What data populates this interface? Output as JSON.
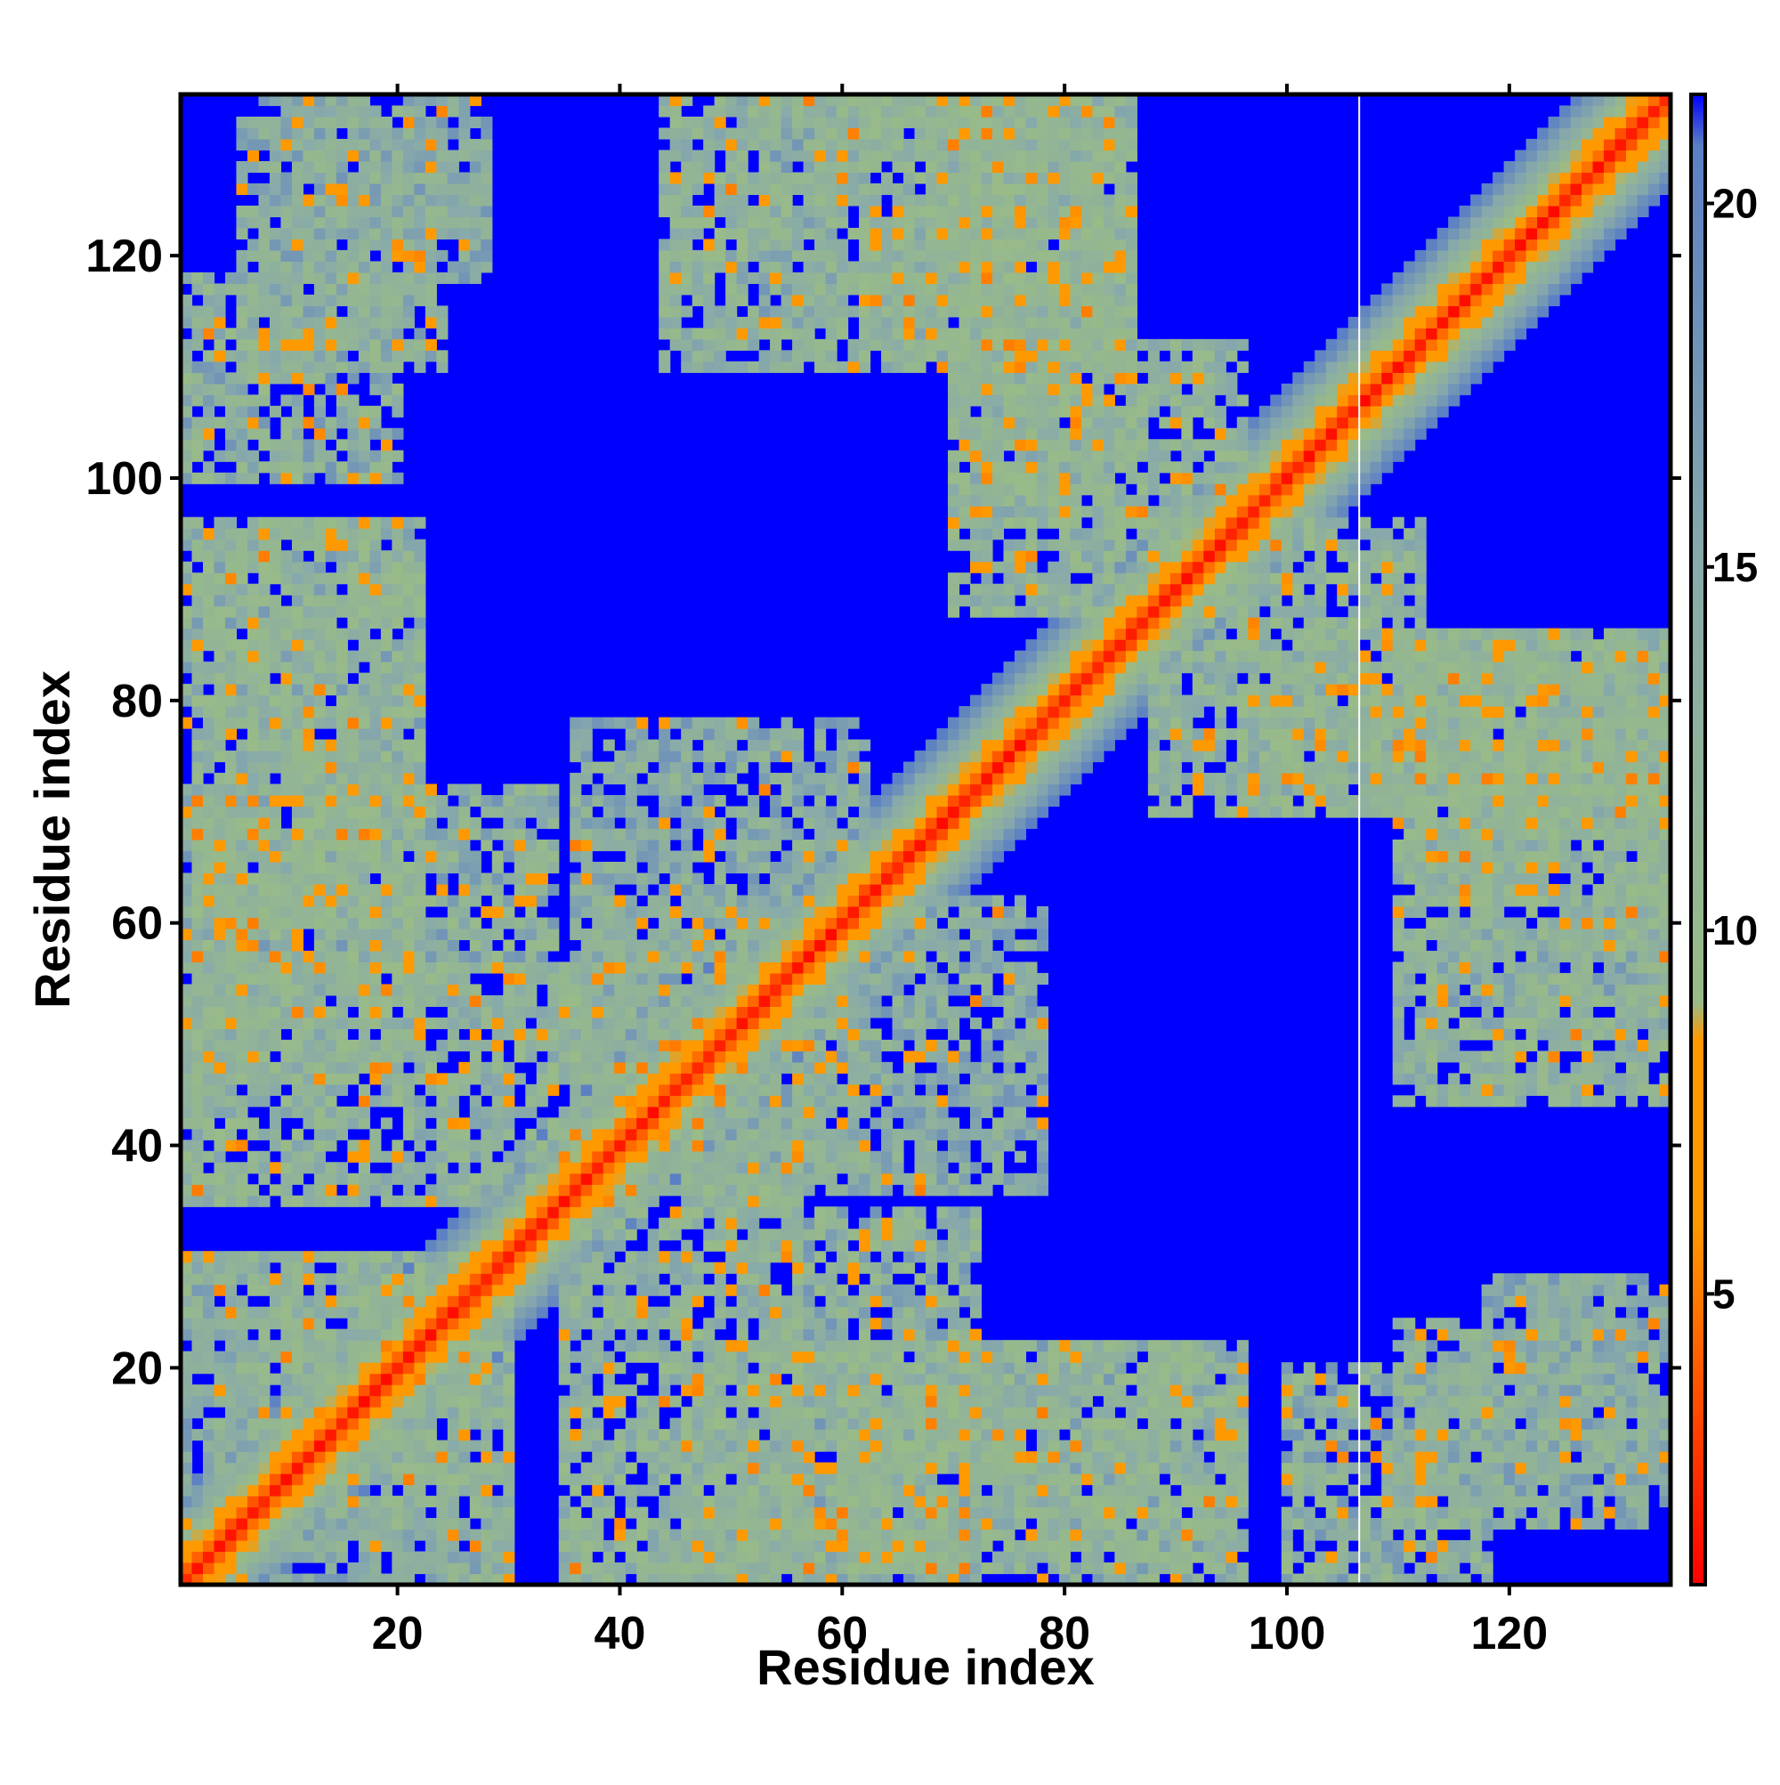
{
  "chart_data": {
    "type": "heatmap",
    "title": "",
    "xlabel": "Residue index",
    "ylabel": "Residue index",
    "n_residues": 134,
    "xlim": [
      1,
      134
    ],
    "ylim": [
      1,
      134
    ],
    "x_ticks": [
      20,
      40,
      60,
      80,
      100,
      120
    ],
    "y_ticks": [
      20,
      40,
      60,
      80,
      100,
      120
    ],
    "colorbar": {
      "ticks": [
        5,
        10,
        15,
        20
      ],
      "range": [
        1,
        21.5
      ],
      "stops": [
        {
          "value": 1,
          "color": "#ff0000"
        },
        {
          "value": 6,
          "color": "#ff9900"
        },
        {
          "value": 8.5,
          "color": "#ff9900"
        },
        {
          "value": 9,
          "color": "#99bb88"
        },
        {
          "value": 15,
          "color": "#88aaaa"
        },
        {
          "value": 20.8,
          "color": "#5b7fc4"
        },
        {
          "value": 21.5,
          "color": "#0000ff"
        }
      ]
    },
    "background_value": 21.5,
    "background_color": "#0000ff",
    "gap_column": 107,
    "contact_regions": [
      {
        "i": [
          24,
          30
        ],
        "j": [
          1,
          30
        ],
        "min": 9,
        "max": 16
      },
      {
        "i": [
          1,
          30
        ],
        "j": [
          1,
          6
        ],
        "min": 12,
        "max": 18
      },
      {
        "i": [
          8,
          22
        ],
        "j": [
          4,
          28
        ],
        "min": 9,
        "max": 16
      },
      {
        "i": [
          35,
          56
        ],
        "j": [
          1,
          42
        ],
        "min": 9,
        "max": 16
      },
      {
        "i": [
          56,
          72
        ],
        "j": [
          1,
          34
        ],
        "min": 9,
        "max": 18
      },
      {
        "i": [
          60,
          76
        ],
        "j": [
          2,
          22
        ],
        "min": 9,
        "max": 16
      },
      {
        "i": [
          78,
          96
        ],
        "j": [
          1,
          22
        ],
        "min": 9,
        "max": 18
      },
      {
        "i": [
          100,
          118
        ],
        "j": [
          1,
          20
        ],
        "min": 9,
        "max": 18
      },
      {
        "i": [
          118,
          134
        ],
        "j": [
          8,
          28
        ],
        "min": 10,
        "max": 18
      },
      {
        "i": [
          110,
          134
        ],
        "j": [
          44,
          86
        ],
        "min": 9,
        "max": 16
      },
      {
        "i": [
          88,
          112
        ],
        "j": [
          70,
          96
        ],
        "min": 9,
        "max": 16
      },
      {
        "i": [
          70,
          86
        ],
        "j": [
          96,
          134
        ],
        "min": 9,
        "max": 16
      },
      {
        "i": [
          62,
          84
        ],
        "j": [
          112,
          134
        ],
        "min": 9,
        "max": 16
      },
      {
        "i": [
          50,
          60
        ],
        "j": [
          114,
          134
        ],
        "min": 10,
        "max": 18
      },
      {
        "i": [
          2,
          22
        ],
        "j": [
          46,
          96
        ],
        "min": 9,
        "max": 16
      },
      {
        "i": [
          6,
          24
        ],
        "j": [
          110,
          132
        ],
        "min": 10,
        "max": 18
      },
      {
        "i": [
          36,
          62
        ],
        "j": [
          38,
          78
        ],
        "min": 10,
        "max": 18
      }
    ]
  }
}
